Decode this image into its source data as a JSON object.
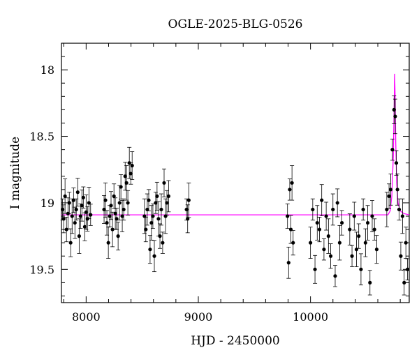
{
  "chart_data": {
    "type": "scatter",
    "title": "OGLE-2025-BLG-0526",
    "xlabel": "HJD - 2450000",
    "ylabel": "I magnitude",
    "xlim": [
      7780,
      10880
    ],
    "ylim": [
      19.75,
      17.8
    ],
    "y_inverted": true,
    "xticks": [
      8000,
      9000,
      10000
    ],
    "yticks": [
      18,
      18.5,
      19,
      19.5
    ],
    "grid": false,
    "colors": {
      "data": "#000000",
      "model": "#ff00ff"
    },
    "series": [
      {
        "kind": "photometry",
        "x": [
          7790,
          7800,
          7812,
          7825,
          7838,
          7850,
          7862,
          7875,
          7888,
          7900,
          7912,
          7925,
          7938,
          7950,
          7962,
          7975,
          7988,
          8000,
          8012,
          8025,
          8040,
          8160,
          8172,
          8185,
          8198,
          8210,
          8222,
          8235,
          8248,
          8260,
          8272,
          8285,
          8298,
          8310,
          8322,
          8335,
          8348,
          8360,
          8372,
          8385,
          8398,
          8410,
          8520,
          8532,
          8545,
          8558,
          8570,
          8582,
          8595,
          8608,
          8620,
          8632,
          8645,
          8658,
          8670,
          8682,
          8695,
          8708,
          8720,
          8735,
          8895,
          8905,
          8915,
          9795,
          9805,
          9815,
          9825,
          9835,
          9845,
          10000,
          10020,
          10040,
          10060,
          10080,
          10100,
          10120,
          10140,
          10160,
          10180,
          10200,
          10220,
          10240,
          10260,
          10280,
          10350,
          10370,
          10390,
          10410,
          10430,
          10450,
          10470,
          10490,
          10510,
          10530,
          10550,
          10570,
          10590,
          10680,
          10700,
          10715,
          10730,
          10745,
          10755,
          10765,
          10775,
          10790,
          10805,
          10820,
          10835,
          10850,
          10865
        ],
        "y": [
          19.05,
          19.12,
          18.95,
          19.2,
          19.08,
          19.0,
          19.3,
          19.1,
          18.98,
          19.15,
          19.05,
          18.92,
          19.25,
          19.1,
          19.02,
          18.96,
          19.18,
          19.07,
          19.12,
          19.0,
          19.09,
          19.05,
          18.98,
          19.15,
          19.3,
          19.1,
          19.02,
          19.2,
          18.95,
          19.08,
          19.12,
          19.25,
          19.0,
          18.88,
          19.1,
          19.05,
          18.8,
          18.85,
          19.0,
          18.7,
          18.78,
          18.72,
          19.1,
          19.2,
          19.05,
          18.98,
          19.35,
          19.15,
          19.1,
          19.4,
          19.0,
          18.95,
          19.12,
          19.25,
          19.05,
          19.3,
          18.85,
          19.1,
          19.0,
          18.95,
          19.05,
          19.12,
          18.98,
          19.1,
          19.45,
          18.9,
          19.2,
          18.85,
          19.3,
          19.3,
          19.05,
          19.5,
          19.15,
          19.2,
          18.98,
          19.35,
          19.1,
          19.25,
          19.4,
          19.05,
          19.55,
          19.0,
          19.3,
          19.15,
          19.2,
          19.4,
          19.1,
          19.35,
          19.25,
          19.5,
          19.05,
          19.3,
          19.15,
          19.6,
          19.1,
          19.2,
          19.35,
          19.05,
          18.95,
          18.9,
          18.6,
          18.3,
          18.35,
          18.7,
          18.9,
          19.05,
          19.4,
          19.1,
          19.6,
          19.3,
          19.5
        ]
      },
      {
        "kind": "model",
        "x": [
          7780,
          10690,
          10710,
          10725,
          10738,
          10746,
          10750,
          10754,
          10760,
          10768,
          10780,
          10800,
          10830,
          10880
        ],
        "y": [
          19.09,
          19.09,
          19.06,
          18.95,
          18.65,
          18.25,
          18.03,
          18.2,
          18.55,
          18.85,
          19.0,
          19.06,
          19.08,
          19.09
        ]
      }
    ]
  }
}
